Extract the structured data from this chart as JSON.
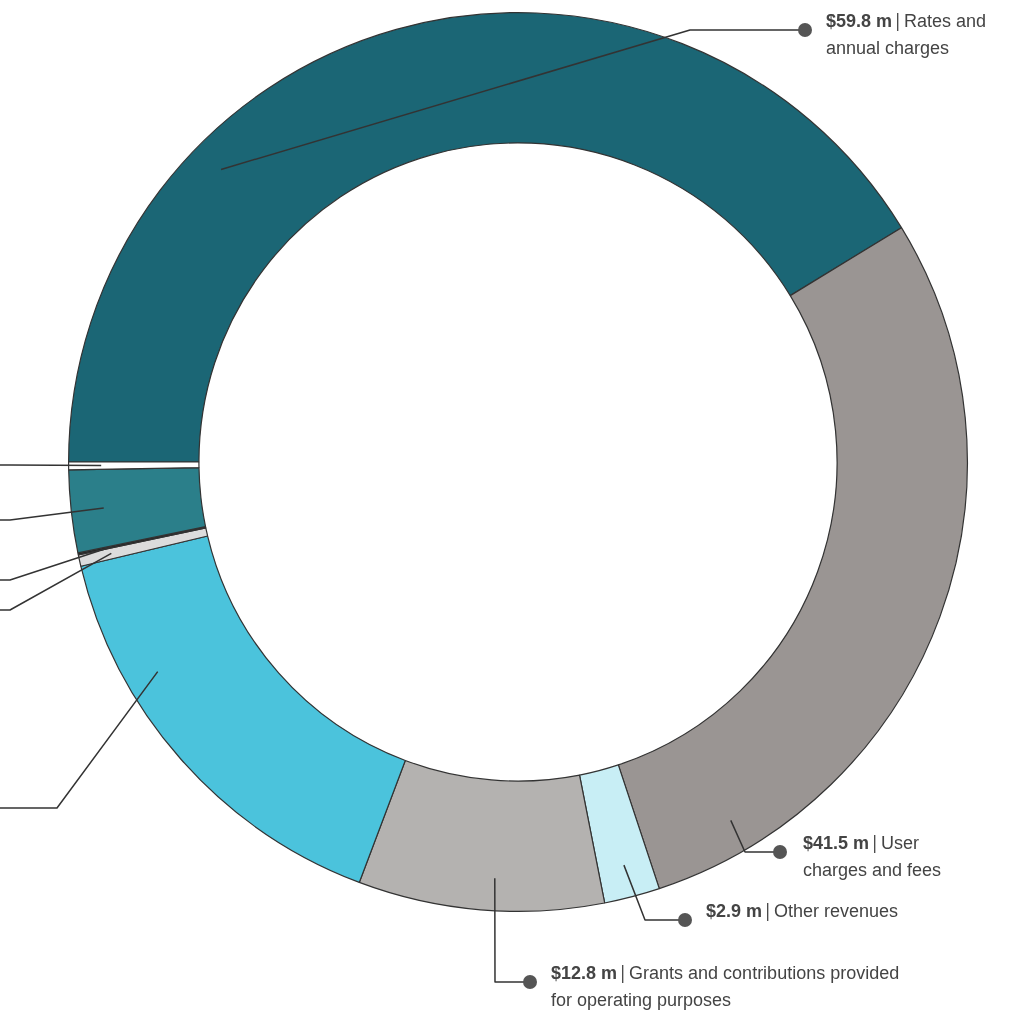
{
  "chart_data": {
    "type": "donut",
    "categories": [
      "Rates and annual charges",
      "User charges and fees",
      "Other revenues",
      "Grants and contributions provided for operating purposes",
      null,
      null,
      null,
      null,
      null
    ],
    "values": [
      59.8,
      41.5,
      2.9,
      12.8,
      22.5,
      0.6,
      0.1,
      4.3,
      0.4
    ],
    "value_labels": [
      "$59.8 m",
      "$41.5 m",
      "$2.9 m",
      "$12.8 m",
      null,
      null,
      null,
      null,
      null
    ],
    "colors": [
      "#1b6675",
      "#9a9593",
      "#c8eef5",
      "#b4b2b0",
      "#4bc3dc",
      "#dcdcdc",
      "#222222",
      "#2b7f8a",
      "#ffffff"
    ],
    "legend": false
  }
}
